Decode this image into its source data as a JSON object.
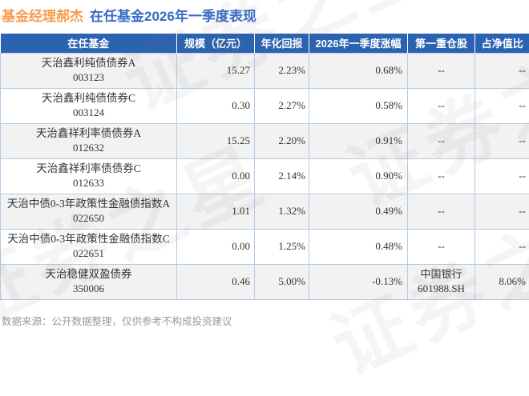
{
  "title": {
    "manager": "基金经理郝杰",
    "subtitle": "在任基金2026年一季度表现"
  },
  "chart_data": {
    "type": "table",
    "title": "基金经理郝杰 在任基金2026年一季度表现",
    "columns": [
      "在任基金",
      "规模（亿元）",
      "年化回报",
      "2026年一季度涨幅",
      "第一重仓股",
      "占净值比"
    ],
    "rows": [
      {
        "name": "天治鑫利纯债债券A",
        "code": "003123",
        "scale": "15.27",
        "annual_return": "2.23%",
        "q1_change": "0.68%",
        "q1_trend": "up",
        "holding_name": "--",
        "holding_code": "",
        "holding_ratio": "--"
      },
      {
        "name": "天治鑫利纯债债券C",
        "code": "003124",
        "scale": "0.30",
        "annual_return": "2.27%",
        "q1_change": "0.58%",
        "q1_trend": "up",
        "holding_name": "--",
        "holding_code": "",
        "holding_ratio": "--"
      },
      {
        "name": "天治鑫祥利率债债券A",
        "code": "012632",
        "scale": "15.25",
        "annual_return": "2.20%",
        "q1_change": "0.91%",
        "q1_trend": "up",
        "holding_name": "--",
        "holding_code": "",
        "holding_ratio": "--"
      },
      {
        "name": "天治鑫祥利率债债券C",
        "code": "012633",
        "scale": "0.00",
        "annual_return": "2.14%",
        "q1_change": "0.90%",
        "q1_trend": "up",
        "holding_name": "--",
        "holding_code": "",
        "holding_ratio": "--"
      },
      {
        "name": "天治中债0-3年政策性金融债指数A",
        "code": "022650",
        "scale": "1.01",
        "annual_return": "1.32%",
        "q1_change": "0.49%",
        "q1_trend": "up",
        "holding_name": "--",
        "holding_code": "",
        "holding_ratio": "--"
      },
      {
        "name": "天治中债0-3年政策性金融债指数C",
        "code": "022651",
        "scale": "0.00",
        "annual_return": "1.25%",
        "q1_change": "0.48%",
        "q1_trend": "up",
        "holding_name": "--",
        "holding_code": "",
        "holding_ratio": "--"
      },
      {
        "name": "天治稳健双盈债券",
        "code": "350006",
        "scale": "0.46",
        "annual_return": "5.00%",
        "q1_change": "-0.13%",
        "q1_trend": "down",
        "holding_name": "中国银行",
        "holding_code": "601988.SH",
        "holding_ratio": "8.06%"
      }
    ]
  },
  "footer": "数据来源：公开数据整理，仅供参考不构成投资建议",
  "watermark": {
    "text": "证券之星"
  },
  "colors": {
    "header_bg": "#2b63b1",
    "up_red": "#f5322d",
    "down_green": "#2aa05a",
    "title_manager": "#f79a4d",
    "title_subtitle": "#3a6bc4",
    "row_alt": "#f2f2f2",
    "cell_border": "#b4cae8"
  }
}
